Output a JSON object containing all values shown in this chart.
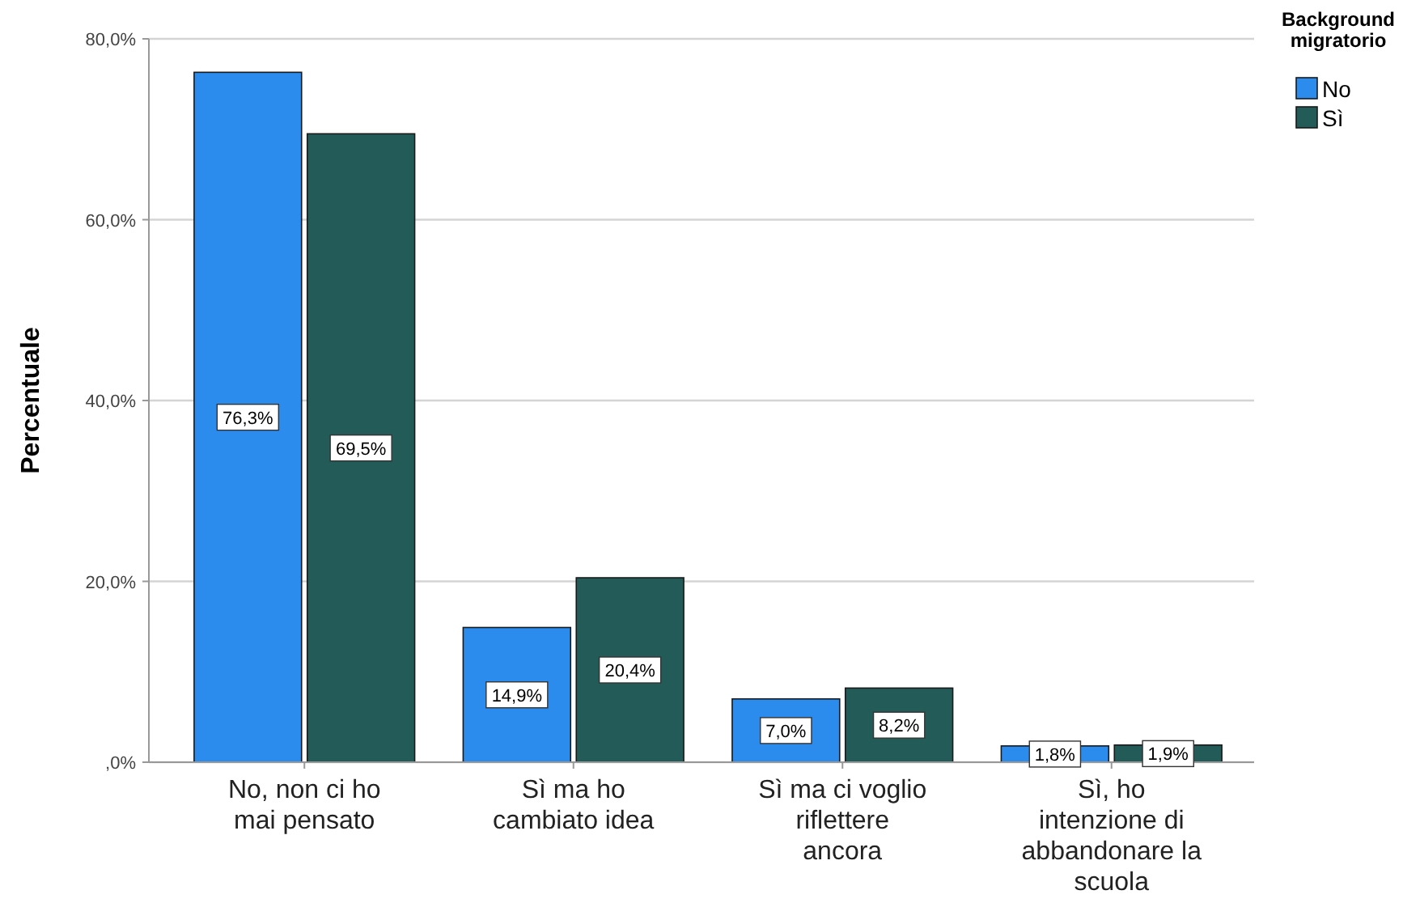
{
  "chart_data": {
    "type": "bar",
    "ylabel": "Percentuale",
    "legend_title": "Background migratorio",
    "legend": "top right",
    "grid": "y",
    "categories": [
      "No, non ci ho mai pensato",
      "Sì ma ho cambiato idea",
      "Sì ma ci voglio riflettere ancora",
      "Sì, ho intenzione di abbandonare la scuola"
    ],
    "series": [
      {
        "name": "No",
        "color": "#2b8ced",
        "values": [
          76.3,
          14.9,
          7.0,
          1.8
        ],
        "value_labels": [
          "76,3%",
          "14,9%",
          "7,0%",
          "1,8%"
        ]
      },
      {
        "name": "Sì",
        "color": "#225b58",
        "values": [
          69.5,
          20.4,
          8.2,
          1.9
        ],
        "value_labels": [
          "69,5%",
          "20,4%",
          "8,2%",
          "1,9%"
        ]
      }
    ],
    "ylim": [
      0,
      80
    ],
    "yticks": [
      {
        "value": 0,
        "label": ",0%"
      },
      {
        "value": 20,
        "label": "20,0%"
      },
      {
        "value": 40,
        "label": "40,0%"
      },
      {
        "value": 60,
        "label": "60,0%"
      },
      {
        "value": 80,
        "label": "80,0%"
      }
    ]
  }
}
